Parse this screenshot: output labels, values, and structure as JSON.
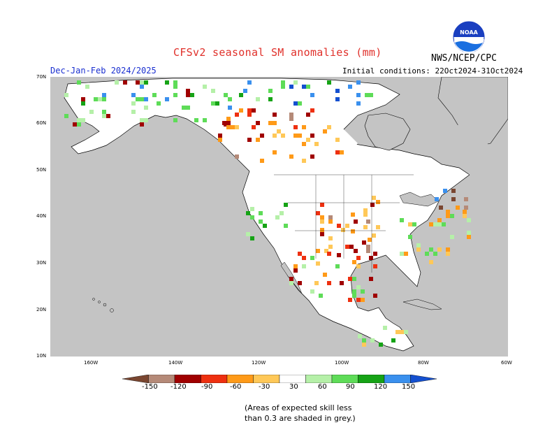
{
  "title": "CFSv2 seasonal SM anomalies (mm)",
  "organization": "NWS/NCEP/CPC",
  "logo_text": "NOAA",
  "season": "Dec-Jan-Feb 2024/2025",
  "initial_conditions": "Initial conditions: 22Oct2024-31Oct2024",
  "lat_labels": [
    "70N",
    "60N",
    "50N",
    "40N",
    "30N",
    "20N",
    "10N"
  ],
  "lon_labels": [
    "160W",
    "140W",
    "120W",
    "100W",
    "80W",
    "60W"
  ],
  "colorbar": {
    "labels": [
      "-150",
      "-120",
      "-90",
      "-60",
      "-30",
      "30",
      "60",
      "90",
      "120",
      "150"
    ],
    "colors": [
      "#7a4630",
      "#b58a78",
      "#a00000",
      "#ee3010",
      "#ff9a18",
      "#ffc858",
      "#ffffff",
      "#b5f0a8",
      "#5edc58",
      "#16a316",
      "#3a90ee",
      "#1450d0"
    ]
  },
  "colors": {
    "land_skill": "#c4c4c4",
    "ocean": "#c4c4c4",
    "land_no_anomaly": "#ffffff",
    "title_red": "#e0302a",
    "season_blue": "#1a2fd0"
  },
  "footnote": {
    "line1": "(Areas of expected skill less",
    "line2": "than 0.3 are shaded in grey.)"
  }
}
